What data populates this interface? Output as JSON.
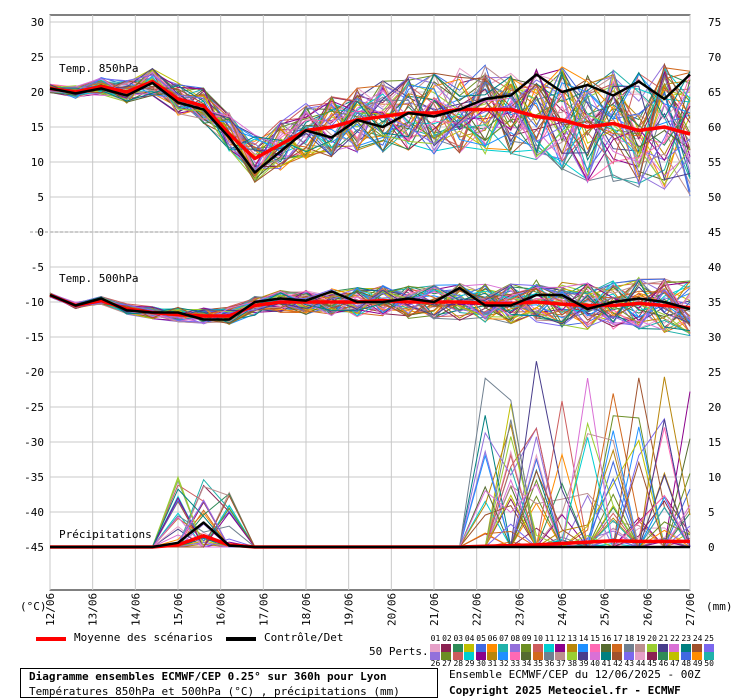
{
  "chart_data": {
    "type": "line",
    "title": "Diagramme ensembles ECMWF/CEP 0.25° sur 360h pour Lyon",
    "subtitle": "Températures 850hPa et 500hPa (°C) , précipitations (mm)",
    "run_info": "Ensemble ECMWF/CEP du 12/06/2025 - 00Z",
    "copyright": "Copyright 2025 Meteociel.fr - ECMWF",
    "left_axis": {
      "unit": "(°C)",
      "ticks": [
        30,
        25,
        20,
        15,
        10,
        5,
        0,
        -5,
        -10,
        -15,
        -20,
        -25,
        -30,
        -35,
        -40,
        -45
      ],
      "range": [
        -45,
        30
      ]
    },
    "right_axis": {
      "unit": "(mm)",
      "ticks": [
        75,
        70,
        65,
        60,
        55,
        50,
        45,
        40,
        35,
        30,
        25,
        20,
        15,
        10,
        5,
        0
      ]
    },
    "x_labels": [
      "12/06",
      "13/06",
      "14/06",
      "15/06",
      "16/06",
      "17/06",
      "18/06",
      "19/06",
      "20/06",
      "21/06",
      "22/06",
      "23/06",
      "24/06",
      "25/06",
      "26/06",
      "27/06"
    ],
    "panels": [
      "Temp. 850hPa",
      "Temp. 500hPa",
      "Précipitations"
    ],
    "series": [
      {
        "name": "Moyenne des scénarios",
        "color": "#ff0000",
        "t850": [
          20.5,
          20.0,
          20.8,
          20.0,
          21.5,
          19.0,
          18.0,
          14.0,
          10.5,
          12.5,
          14.5,
          15.0,
          16.0,
          16.5,
          17.0,
          17.0,
          17.5,
          17.5,
          17.5,
          16.5,
          16.0,
          15.0,
          15.5,
          14.5,
          15.0,
          14.0
        ],
        "t500": [
          -9.0,
          -10.5,
          -9.8,
          -11.0,
          -11.5,
          -11.8,
          -12.0,
          -12.0,
          -10.5,
          -10.0,
          -10.0,
          -10.0,
          -10.0,
          -9.8,
          -10.0,
          -10.0,
          -10.0,
          -10.2,
          -10.2,
          -10.0,
          -10.3,
          -10.5,
          -10.5,
          -10.2,
          -10.5,
          -10.8
        ],
        "precip": [
          0,
          0,
          0,
          0,
          0,
          0.3,
          1.6,
          0.3,
          0,
          0,
          0,
          0,
          0,
          0,
          0,
          0,
          0,
          0.1,
          0.2,
          0.3,
          0.5,
          0.7,
          0.9,
          0.8,
          0.8,
          0.8
        ]
      },
      {
        "name": "Contrôle/Det",
        "color": "#000000",
        "t850": [
          20.5,
          19.8,
          20.5,
          19.5,
          21.3,
          18.5,
          17.5,
          13.5,
          8.5,
          11.5,
          14.5,
          13.5,
          16.0,
          15.0,
          17.0,
          16.5,
          17.5,
          19.0,
          19.5,
          22.5,
          20.0,
          21.0,
          19.5,
          21.5,
          19.0,
          22.5
        ],
        "t500": [
          -9.0,
          -10.5,
          -9.5,
          -11.2,
          -11.5,
          -11.5,
          -12.5,
          -12.5,
          -10.0,
          -9.5,
          -9.8,
          -8.5,
          -10.0,
          -10.0,
          -9.5,
          -10.0,
          -8.0,
          -10.5,
          -10.5,
          -9.0,
          -9.0,
          -11.0,
          -10.0,
          -9.5,
          -10.0,
          -11.0
        ],
        "precip": [
          0,
          0,
          0,
          0,
          0,
          0.6,
          3.5,
          0.2,
          0,
          0,
          0,
          0,
          0,
          0,
          0,
          0,
          0,
          0,
          0,
          0,
          0,
          0,
          0,
          0,
          0,
          0
        ]
      }
    ],
    "ensemble_members": 50,
    "ensemble_t850_range": [
      5,
      25
    ],
    "ensemble_t500_range": [
      -20,
      -6
    ],
    "ensemble_precip_max": 29
  },
  "legend": {
    "mean_label": "Moyenne des scénarios",
    "control_label": "Contrôle/Det",
    "perts_label": "50 Perts.",
    "perts_top": [
      "01",
      "02",
      "03",
      "04",
      "05",
      "06",
      "07",
      "08",
      "09",
      "10",
      "11",
      "12",
      "13",
      "14",
      "15",
      "16",
      "17",
      "18",
      "19",
      "20",
      "21",
      "22",
      "23",
      "24",
      "25"
    ],
    "perts_bottom": [
      "26",
      "27",
      "28",
      "29",
      "30",
      "31",
      "32",
      "33",
      "34",
      "35",
      "36",
      "37",
      "38",
      "39",
      "40",
      "41",
      "42",
      "43",
      "44",
      "45",
      "46",
      "47",
      "48",
      "49",
      "50"
    ],
    "colors": [
      "#e6a0c8",
      "#8b2252",
      "#2e8b57",
      "#c0c000",
      "#4169e1",
      "#ff8c00",
      "#20b2aa",
      "#9370db",
      "#6b8e23",
      "#cd5c5c",
      "#00ced1",
      "#8b008b",
      "#b8860b",
      "#1e90ff",
      "#ff69b4",
      "#556b2f",
      "#d2691e",
      "#708090",
      "#bc8f8f",
      "#9acd32",
      "#483d8b",
      "#da70d6",
      "#008080",
      "#a0522d",
      "#7b68ee"
    ]
  }
}
